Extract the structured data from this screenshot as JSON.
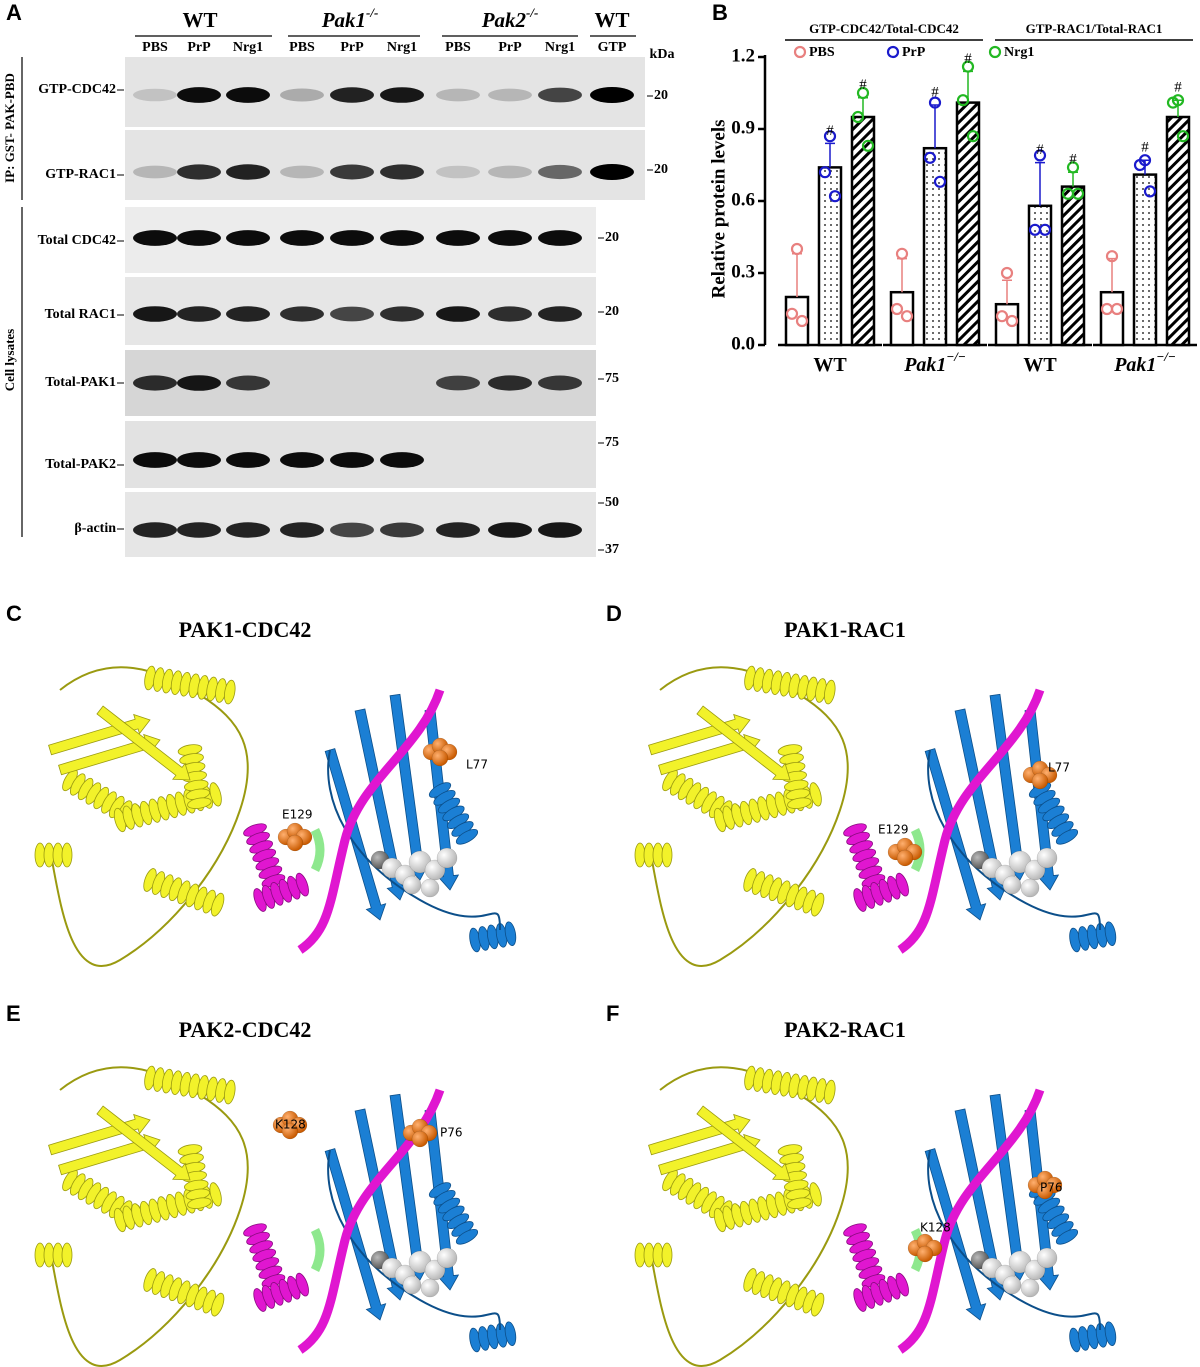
{
  "panel_a": {
    "label": "A",
    "groups": [
      {
        "name": "WT"
      },
      {
        "name": "Pak1",
        "sup": "-/-"
      },
      {
        "name": "Pak2",
        "sup": "-/-"
      },
      {
        "name": "WT"
      }
    ],
    "lanes": [
      "PBS",
      "PrP",
      "Nrg1",
      "PBS",
      "PrP",
      "Nrg1",
      "PBS",
      "PrP",
      "Nrg1",
      "GTP"
    ],
    "kda_unit": "kDa",
    "ip_label": "IP: GST- PAK-PBD",
    "lysate_label": "Cell lysates",
    "rows": [
      {
        "label": "GTP-CDC42",
        "markers": [
          20
        ]
      },
      {
        "label": "GTP-RAC1",
        "markers": [
          20
        ]
      },
      {
        "label": "Total CDC42",
        "markers": [
          20
        ]
      },
      {
        "label": "Total RAC1",
        "markers": [
          20
        ]
      },
      {
        "label": "Total-PAK1",
        "markers": [
          75
        ]
      },
      {
        "label": "Total-PAK2",
        "markers": [
          75
        ]
      },
      {
        "label": "β-actin",
        "markers": [
          50,
          37
        ]
      }
    ]
  },
  "chart_data": {
    "type": "bar",
    "label": "B",
    "ylabel": "Relative protein levels",
    "categories": [
      "WT",
      "Pak1",
      "WT",
      "Pak1"
    ],
    "category_superscripts": [
      null,
      "−/−",
      null,
      "−/−"
    ],
    "category_groups": [
      {
        "label": "GTP-CDC42/Total-CDC42",
        "size": 2
      },
      {
        "label": "GTP-RAC1/Total-RAC1",
        "size": 2
      }
    ],
    "ylim": [
      0,
      1.2
    ],
    "yticks": [
      {
        "value": 0,
        "label": "0.0"
      },
      0.3,
      0.6,
      0.9,
      1.2
    ],
    "series": [
      {
        "name": "PBS",
        "color": "#e8807f",
        "pattern": "none",
        "values": [
          0.2,
          0.22,
          0.17,
          0.22
        ],
        "errors": [
          0.18,
          0.14,
          0.1,
          0.14
        ],
        "points": [
          [
            0.4,
            0.13,
            0.1
          ],
          [
            0.38,
            0.15,
            0.12
          ],
          [
            0.3,
            0.12,
            0.1
          ],
          [
            0.37,
            0.15,
            0.15
          ]
        ],
        "markers": [
          null,
          null,
          null,
          null
        ]
      },
      {
        "name": "PrP",
        "color": "#1a1acc",
        "pattern": "dots",
        "values": [
          0.74,
          0.82,
          0.58,
          0.71
        ],
        "errors": [
          0.1,
          0.18,
          0.18,
          0.06
        ],
        "points": [
          [
            0.87,
            0.72,
            0.62
          ],
          [
            1.01,
            0.78,
            0.68
          ],
          [
            0.79,
            0.48,
            0.48
          ],
          [
            0.77,
            0.75,
            0.64
          ]
        ],
        "markers": [
          "#",
          "#",
          "#",
          "#"
        ]
      },
      {
        "name": "Nrg1",
        "color": "#22b822",
        "pattern": "hatch",
        "values": [
          0.95,
          1.01,
          0.66,
          0.95
        ],
        "errors": [
          0.08,
          0.13,
          0.06,
          0.07
        ],
        "points": [
          [
            1.05,
            0.95,
            0.83
          ],
          [
            1.16,
            1.02,
            0.87
          ],
          [
            0.74,
            0.63,
            0.63
          ],
          [
            1.02,
            1.01,
            0.87
          ]
        ],
        "markers": [
          "#",
          "#",
          "#",
          "#"
        ]
      }
    ]
  },
  "structures": [
    {
      "label": "C",
      "title": "PAK1-CDC42",
      "residues": [
        "E129",
        "L77"
      ]
    },
    {
      "label": "D",
      "title": "PAK1-RAC1",
      "residues": [
        "E129",
        "L77"
      ]
    },
    {
      "label": "E",
      "title": "PAK2-CDC42",
      "residues": [
        "K128",
        "P76"
      ]
    },
    {
      "label": "F",
      "title": "PAK2-RAC1",
      "residues": [
        "K128",
        "P76"
      ]
    }
  ]
}
